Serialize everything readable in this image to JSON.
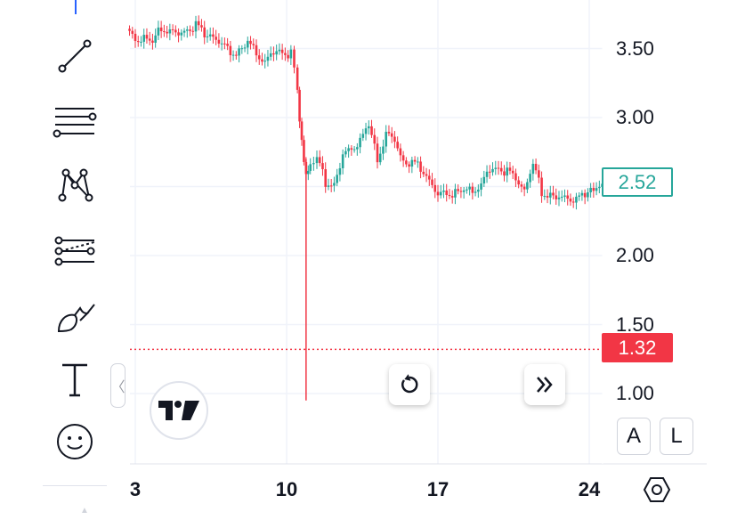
{
  "colors": {
    "up": "#26a69a",
    "down": "#f23645",
    "grid": "#f0f3fa",
    "text": "#131722",
    "accent": "#2962ff"
  },
  "toolbar": {
    "items": [
      {
        "name": "trend-line-icon"
      },
      {
        "name": "fib-retracement-icon"
      },
      {
        "name": "pattern-icon"
      },
      {
        "name": "forecast-icon"
      },
      {
        "name": "brush-icon"
      },
      {
        "name": "text-icon"
      },
      {
        "name": "emoji-icon"
      }
    ]
  },
  "controls": {
    "collapse_glyph": "〈",
    "scale_auto_label": "A",
    "scale_log_label": "L"
  },
  "chart_data": {
    "type": "candlestick",
    "x_tick_labels": [
      "3",
      "10",
      "17",
      "24"
    ],
    "y_tick_labels": [
      "3.50",
      "3.00",
      "2.00",
      "1.50",
      "1.00"
    ],
    "y_ticks": [
      3.5,
      3.0,
      2.0,
      1.5,
      1.0
    ],
    "gridlines_y": [
      3.5,
      3.0,
      2.5,
      2.0,
      1.5,
      1.0
    ],
    "ylim": [
      0.6,
      3.85
    ],
    "last_price": 2.52,
    "last_price_label": "2.52",
    "alert_price": 1.32,
    "alert_price_label": "1.32",
    "grid": true,
    "spike": {
      "day": 10.9,
      "low": 0.95
    },
    "closes": [
      [
        2.6,
        3.6
      ],
      [
        3.0,
        3.58
      ],
      [
        3.4,
        3.6
      ],
      [
        3.8,
        3.55
      ],
      [
        4.2,
        3.66
      ],
      [
        4.6,
        3.6
      ],
      [
        5.0,
        3.58
      ],
      [
        5.4,
        3.65
      ],
      [
        5.8,
        3.68
      ],
      [
        6.2,
        3.62
      ],
      [
        6.6,
        3.6
      ],
      [
        7.0,
        3.5
      ],
      [
        7.4,
        3.46
      ],
      [
        7.8,
        3.48
      ],
      [
        8.2,
        3.55
      ],
      [
        8.6,
        3.5
      ],
      [
        9.0,
        3.4
      ],
      [
        9.4,
        3.45
      ],
      [
        9.8,
        3.47
      ],
      [
        10.2,
        3.45
      ],
      [
        10.5,
        3.2
      ],
      [
        10.7,
        2.8
      ],
      [
        10.9,
        2.55
      ],
      [
        11.1,
        2.65
      ],
      [
        11.4,
        2.7
      ],
      [
        11.8,
        2.52
      ],
      [
        12.2,
        2.5
      ],
      [
        12.6,
        2.7
      ],
      [
        13.0,
        2.8
      ],
      [
        13.4,
        2.85
      ],
      [
        13.8,
        2.95
      ],
      [
        14.2,
        2.7
      ],
      [
        14.6,
        2.85
      ],
      [
        15.0,
        2.82
      ],
      [
        15.4,
        2.7
      ],
      [
        15.8,
        2.68
      ],
      [
        16.2,
        2.65
      ],
      [
        16.6,
        2.55
      ],
      [
        17.0,
        2.4
      ],
      [
        17.4,
        2.45
      ],
      [
        17.8,
        2.46
      ],
      [
        18.2,
        2.48
      ],
      [
        18.6,
        2.5
      ],
      [
        19.0,
        2.5
      ],
      [
        19.4,
        2.6
      ],
      [
        19.8,
        2.63
      ],
      [
        20.2,
        2.6
      ],
      [
        20.6,
        2.58
      ],
      [
        21.0,
        2.5
      ],
      [
        21.4,
        2.65
      ],
      [
        21.8,
        2.45
      ],
      [
        22.2,
        2.42
      ],
      [
        22.6,
        2.4
      ],
      [
        23.0,
        2.45
      ],
      [
        23.4,
        2.42
      ],
      [
        23.8,
        2.44
      ],
      [
        24.2,
        2.48
      ],
      [
        24.6,
        2.52
      ]
    ]
  }
}
